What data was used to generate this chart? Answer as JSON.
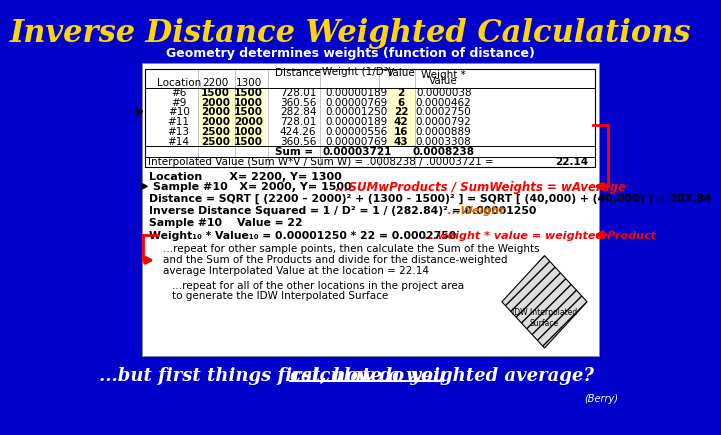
{
  "title": "Inverse Distance Weighted Calculations",
  "subtitle": "Geometry determines weights (function of distance)",
  "bg_color": "#0000CC",
  "title_color": "#FFD700",
  "subtitle_color": "#FFFFFF",
  "bottom_text_part1": "...but first things first, how do you ",
  "bottom_text_part2": "calculate a weighted average?",
  "berry_text": "(Berry)",
  "table_rows": [
    [
      "#6",
      "1500",
      "1500",
      "728.01",
      "0.00000189",
      "2",
      "0.0000038"
    ],
    [
      "#9",
      "2000",
      "1000",
      "360.56",
      "0.00000769",
      "6",
      "0.0000462"
    ],
    [
      "#10",
      "2000",
      "1500",
      "282.84",
      "0.00001250",
      "22",
      "0.0002750"
    ],
    [
      "#11",
      "2000",
      "2000",
      "728.01",
      "0.00000189",
      "42",
      "0.0000792"
    ],
    [
      "#13",
      "2500",
      "1000",
      "424.26",
      "0.00000556",
      "16",
      "0.0000889"
    ],
    [
      "#14",
      "2500",
      "1500",
      "360.56",
      "0.00000769",
      "43",
      "0.0003308"
    ]
  ],
  "calc_line1": "Location       X= 2200, Y= 1300",
  "calc_line2": "Sample #10   X= 2000, Y= 1500",
  "sumw_label": "...SUMwProducts / SumWeights = wAverage",
  "dist_line": "Distance = SQRT [ (2200 – 2000)² + (1300 - 1500)² ] = SQRT [ (40,000) + (40,000) ] = 282.84",
  "inv_line1": "Inverse Distance Squared = 1 / D² = 1 / (282.84)² = 0.00001250",
  "inv_line2": "   ...Weight",
  "sample_line": "Sample #10    Value = 22",
  "weight_line1": "Weight₁₀ * Value₁₀ = 0.00001250 * 22 = 0.0002750",
  "weight_line2": "   ...weight * value = weighted Product",
  "repeat_lines": [
    "...repeat for other sample points, then calculate the Sum of the Weights",
    "and the Sum of the Products and divide for the distance-weighted",
    "average Interpolated Value at the location = 22.14"
  ],
  "repeat2_lines": [
    "...repeat for all of the other locations in the project area",
    "to generate the IDW Interpolated Surface"
  ],
  "idw_label": "IDW Interpolated\nSurface"
}
